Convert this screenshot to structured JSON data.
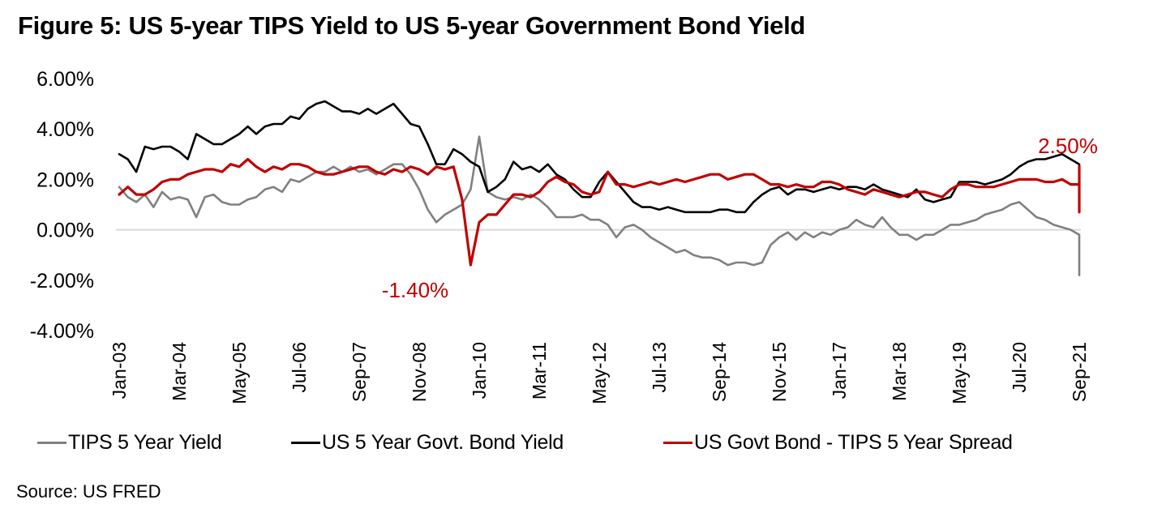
{
  "title": "Figure 5: US 5-year TIPS Yield to US 5-year Government Bond Yield",
  "source": "Source: US FRED",
  "colors": {
    "tips": "#808080",
    "govt": "#000000",
    "spread": "#C00000",
    "zero_line": "#D9D9D9"
  },
  "chart_data": {
    "type": "line",
    "title": "Figure 5: US 5-year TIPS Yield to US 5-year Government Bond Yield",
    "xlabel": "",
    "ylabel": "",
    "ylim": [
      -4,
      6
    ],
    "y_ticks": [
      "6.00%",
      "4.00%",
      "2.00%",
      "0.00%",
      "-2.00%",
      "-4.00%"
    ],
    "y_tick_values": [
      6,
      4,
      2,
      0,
      -2,
      -4
    ],
    "x_tick_labels": [
      "Jan-03",
      "Mar-04",
      "May-05",
      "Jul-06",
      "Sep-07",
      "Nov-08",
      "Jan-10",
      "Mar-11",
      "May-12",
      "Jul-13",
      "Sep-14",
      "Nov-15",
      "Jan-17",
      "Mar-18",
      "May-19",
      "Jul-20",
      "Sep-21"
    ],
    "x_start": "Jan-03",
    "x_end": "Sep-21",
    "x_step_months": 2,
    "grid": false,
    "legend_position": "bottom",
    "series": [
      {
        "name": "TIPS 5 Year Yield",
        "key": "tips",
        "values": [
          1.7,
          1.3,
          1.1,
          1.4,
          0.9,
          1.5,
          1.2,
          1.3,
          1.2,
          0.5,
          1.3,
          1.4,
          1.1,
          1.0,
          1.0,
          1.2,
          1.3,
          1.6,
          1.7,
          1.5,
          2.0,
          1.9,
          2.1,
          2.3,
          2.3,
          2.5,
          2.3,
          2.5,
          2.3,
          2.4,
          2.2,
          2.4,
          2.6,
          2.6,
          2.2,
          1.6,
          0.8,
          0.3,
          0.6,
          0.8,
          1.0,
          1.6,
          3.7,
          1.5,
          1.3,
          1.2,
          1.3,
          1.2,
          1.4,
          1.2,
          0.9,
          0.5,
          0.5,
          0.5,
          0.6,
          0.4,
          0.4,
          0.2,
          -0.3,
          0.1,
          0.2,
          0.0,
          -0.3,
          -0.5,
          -0.7,
          -0.9,
          -0.8,
          -1.0,
          -1.1,
          -1.1,
          -1.2,
          -1.4,
          -1.3,
          -1.3,
          -1.4,
          -1.3,
          -0.6,
          -0.3,
          -0.1,
          -0.4,
          -0.1,
          -0.3,
          -0.1,
          -0.2,
          0.0,
          0.1,
          0.4,
          0.2,
          0.1,
          0.5,
          0.1,
          -0.2,
          -0.2,
          -0.4,
          -0.2,
          -0.2,
          0.0,
          0.2,
          0.2,
          0.3,
          0.4,
          0.6,
          0.7,
          0.8,
          1.0,
          1.1,
          0.8,
          0.5,
          0.4,
          0.2,
          0.1,
          0.0,
          -0.2,
          -0.3,
          -1.0,
          -1.2,
          -1.3,
          -1.7,
          -1.7,
          -1.8,
          -1.7,
          -1.6
        ],
        "note": "sampled every 2 months, Jan-03 to Sep-21"
      },
      {
        "name": "US 5 Year Govt. Bond Yield",
        "key": "govt",
        "values": [
          3.0,
          2.8,
          2.3,
          3.3,
          3.2,
          3.3,
          3.3,
          3.1,
          2.8,
          3.8,
          3.6,
          3.4,
          3.4,
          3.6,
          3.8,
          4.1,
          3.8,
          4.1,
          4.2,
          4.2,
          4.5,
          4.4,
          4.8,
          5.0,
          5.1,
          4.9,
          4.7,
          4.7,
          4.6,
          4.8,
          4.6,
          4.8,
          5.0,
          4.6,
          4.2,
          4.1,
          3.4,
          2.6,
          2.6,
          3.2,
          3.0,
          2.7,
          2.5,
          1.5,
          1.7,
          2.0,
          2.7,
          2.4,
          2.5,
          2.3,
          2.6,
          2.2,
          2.0,
          1.6,
          1.3,
          1.3,
          1.9,
          2.3,
          1.9,
          1.5,
          1.1,
          0.9,
          0.9,
          0.8,
          0.9,
          0.8,
          0.7,
          0.7,
          0.7,
          0.7,
          0.8,
          0.8,
          0.7,
          0.7,
          1.1,
          1.4,
          1.6,
          1.7,
          1.4,
          1.6,
          1.6,
          1.5,
          1.6,
          1.7,
          1.6,
          1.7,
          1.7,
          1.6,
          1.8,
          1.6,
          1.5,
          1.4,
          1.3,
          1.6,
          1.2,
          1.1,
          1.2,
          1.3,
          1.9,
          1.9,
          1.9,
          1.8,
          1.9,
          2.0,
          2.2,
          2.5,
          2.7,
          2.8,
          2.8,
          2.9,
          3.0,
          2.8,
          2.6,
          2.5,
          2.3,
          2.2,
          1.8,
          1.6,
          1.6,
          1.7,
          1.7,
          1.6,
          1.7
        ],
        "note": "sampled every 2 months, Jan-03 to Sep-21"
      },
      {
        "name": "US Govt Bond - TIPS 5 Year Spread",
        "key": "spread",
        "values": [
          1.4,
          1.7,
          1.4,
          1.4,
          1.6,
          1.9,
          2.0,
          2.0,
          2.2,
          2.3,
          2.4,
          2.4,
          2.3,
          2.6,
          2.5,
          2.8,
          2.5,
          2.3,
          2.5,
          2.4,
          2.6,
          2.6,
          2.5,
          2.3,
          2.2,
          2.2,
          2.3,
          2.4,
          2.5,
          2.5,
          2.3,
          2.2,
          2.4,
          2.3,
          2.5,
          2.4,
          2.2,
          2.5,
          2.4,
          2.5,
          1.2,
          -1.4,
          0.3,
          0.6,
          0.6,
          1.0,
          1.4,
          1.4,
          1.3,
          1.5,
          1.9,
          2.1,
          1.9,
          1.8,
          1.5,
          1.4,
          1.5,
          2.3,
          1.8,
          1.8,
          1.7,
          1.8,
          1.9,
          1.8,
          1.9,
          2.0,
          1.9,
          2.0,
          2.1,
          2.2,
          2.2,
          2.0,
          2.1,
          2.2,
          2.2,
          2.0,
          1.8,
          1.8,
          1.7,
          1.8,
          1.7,
          1.7,
          1.9,
          1.9,
          1.8,
          1.6,
          1.5,
          1.4,
          1.6,
          1.5,
          1.4,
          1.3,
          1.4,
          1.5,
          1.5,
          1.4,
          1.3,
          1.6,
          1.8,
          1.8,
          1.7,
          1.7,
          1.7,
          1.8,
          1.9,
          2.0,
          2.0,
          2.0,
          1.9,
          1.9,
          2.0,
          1.8,
          1.8,
          1.6,
          1.6,
          1.5,
          1.6,
          1.6,
          0.7,
          1.2,
          1.5,
          1.9,
          2.5
        ],
        "note": "sampled every 2 months, Jan-03 to Sep-21"
      }
    ],
    "annotations": [
      {
        "text": "-1.40%",
        "series": "spread",
        "at": "Nov-08",
        "value": -1.4
      },
      {
        "text": "2.50%",
        "series": "spread",
        "at": "Sep-21",
        "value": 2.5
      }
    ]
  },
  "legend": [
    {
      "label": "TIPS 5 Year Yield",
      "key": "tips"
    },
    {
      "label": "US 5 Year Govt. Bond Yield",
      "key": "govt"
    },
    {
      "label": "US Govt Bond - TIPS 5 Year Spread",
      "key": "spread"
    }
  ]
}
